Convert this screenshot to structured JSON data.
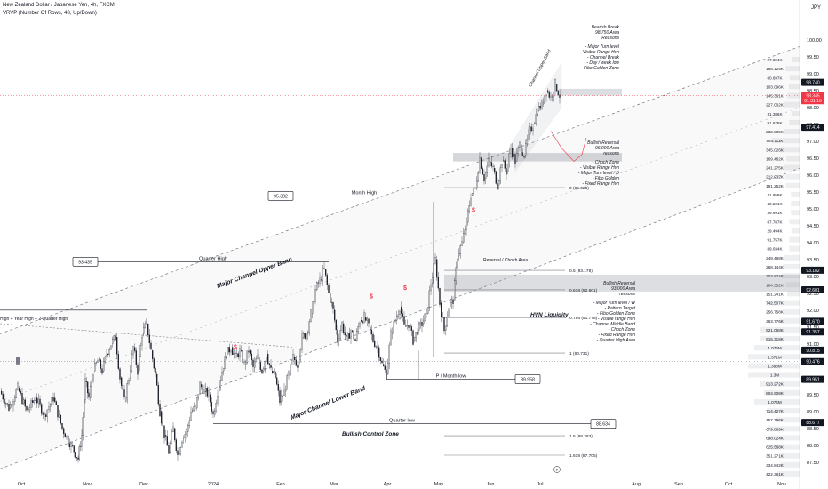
{
  "header": {
    "title": "New Zealand Dollar / Japanese Yen, 4h, FXCM",
    "indicator": "VRVP (Number Of Rows, 48, Up/Down)",
    "currency": "JPY"
  },
  "chart_data": {
    "type": "candlestick",
    "ylim": [
      87.1,
      100.6
    ],
    "x_ticks": [
      "Oct",
      "Nov",
      "Dec",
      "2024",
      "Feb",
      "Mar",
      "Apr",
      "May",
      "Jun",
      "Jul",
      "Aug",
      "Sep",
      "Oct",
      "Nov"
    ],
    "y_ticks": [
      100.0,
      99.5,
      99.0,
      98.5,
      98.0,
      97.5,
      97.0,
      96.5,
      96.0,
      95.5,
      95.0,
      94.5,
      94.0,
      93.5,
      93.0,
      92.5,
      92.0,
      91.5,
      91.0,
      90.5,
      90.0,
      89.5,
      89.0,
      88.5,
      88.0,
      87.5
    ],
    "price_badges": [
      {
        "value": "98.740",
        "price": 98.74,
        "color": "#131722"
      },
      {
        "value": "98.345",
        "price": 98.345,
        "color": "#f23645"
      },
      {
        "value": "01:31:16",
        "price": 98.2,
        "color": "#f23645"
      },
      {
        "value": "97.414",
        "price": 97.414,
        "color": "#131722"
      },
      {
        "value": "93.182",
        "price": 93.182,
        "color": "#131722"
      },
      {
        "value": "92.601",
        "price": 92.601,
        "color": "#131722"
      },
      {
        "value": "91.670",
        "price": 91.67,
        "color": "#131722"
      },
      {
        "value": "91.357",
        "price": 91.357,
        "color": "#131722"
      },
      {
        "value": "90.815",
        "price": 90.815,
        "color": "#131722"
      },
      {
        "value": "90.476",
        "price": 90.476,
        "color": "#131722"
      },
      {
        "value": "89.951",
        "price": 89.951,
        "color": "#131722"
      },
      {
        "value": "88.677",
        "price": 88.677,
        "color": "#131722"
      }
    ],
    "price_path": [
      [
        0,
        89.6
      ],
      [
        10,
        89.1
      ],
      [
        20,
        89.7
      ],
      [
        30,
        89.0
      ],
      [
        40,
        89.4
      ],
      [
        50,
        88.9
      ],
      [
        60,
        89.4
      ],
      [
        70,
        88.5
      ],
      [
        80,
        88.0
      ],
      [
        88,
        87.6
      ],
      [
        92,
        88.3
      ],
      [
        96,
        89.9
      ],
      [
        100,
        89.4
      ],
      [
        105,
        90.2
      ],
      [
        110,
        90.5
      ],
      [
        115,
        90.2
      ],
      [
        120,
        90.7
      ],
      [
        125,
        91.0
      ],
      [
        130,
        91.2
      ],
      [
        135,
        90.0
      ],
      [
        140,
        89.3
      ],
      [
        145,
        90.0
      ],
      [
        150,
        90.9
      ],
      [
        155,
        90.2
      ],
      [
        160,
        91.3
      ],
      [
        165,
        91.6
      ],
      [
        170,
        90.8
      ],
      [
        175,
        90.1
      ],
      [
        180,
        89.0
      ],
      [
        185,
        88.3
      ],
      [
        190,
        87.8
      ],
      [
        195,
        88.5
      ],
      [
        200,
        87.7
      ],
      [
        205,
        88.2
      ],
      [
        210,
        88.4
      ],
      [
        215,
        89.0
      ],
      [
        220,
        89.1
      ],
      [
        225,
        89.8
      ],
      [
        230,
        89.6
      ],
      [
        235,
        89.5
      ],
      [
        240,
        88.9
      ],
      [
        245,
        89.6
      ],
      [
        250,
        90.2
      ],
      [
        255,
        90.7
      ],
      [
        260,
        90.9
      ],
      [
        265,
        90.6
      ],
      [
        270,
        90.8
      ],
      [
        275,
        90.4
      ],
      [
        280,
        90.8
      ],
      [
        285,
        90.3
      ],
      [
        290,
        90.6
      ],
      [
        295,
        90.2
      ],
      [
        300,
        90.7
      ],
      [
        305,
        90.2
      ],
      [
        310,
        90.0
      ],
      [
        315,
        89.3
      ],
      [
        320,
        89.6
      ],
      [
        325,
        90.1
      ],
      [
        330,
        90.6
      ],
      [
        335,
        90.4
      ],
      [
        340,
        91.2
      ],
      [
        345,
        91.3
      ],
      [
        350,
        91.9
      ],
      [
        355,
        92.6
      ],
      [
        360,
        92.9
      ],
      [
        365,
        93.2
      ],
      [
        370,
        92.5
      ],
      [
        375,
        92.0
      ],
      [
        380,
        91.1
      ],
      [
        385,
        91.6
      ],
      [
        390,
        91.1
      ],
      [
        395,
        91.4
      ],
      [
        400,
        91.1
      ],
      [
        405,
        91.7
      ],
      [
        410,
        91.8
      ],
      [
        415,
        91.5
      ],
      [
        420,
        91.1
      ],
      [
        425,
        90.9
      ],
      [
        430,
        90.4
      ],
      [
        435,
        90.1
      ],
      [
        440,
        91.3
      ],
      [
        445,
        91.7
      ],
      [
        450,
        92.1
      ],
      [
        455,
        91.5
      ],
      [
        460,
        91.6
      ],
      [
        465,
        91.1
      ],
      [
        470,
        91.4
      ],
      [
        475,
        91.6
      ],
      [
        480,
        91.9
      ],
      [
        485,
        92.8
      ],
      [
        490,
        93.5
      ],
      [
        495,
        92.2
      ],
      [
        500,
        91.4
      ],
      [
        505,
        92.1
      ],
      [
        510,
        92.3
      ],
      [
        515,
        93.6
      ],
      [
        520,
        94.0
      ],
      [
        525,
        94.6
      ],
      [
        530,
        95.4
      ],
      [
        535,
        95.6
      ],
      [
        540,
        96.5
      ],
      [
        545,
        95.9
      ],
      [
        550,
        96.4
      ],
      [
        555,
        96.2
      ],
      [
        560,
        95.7
      ],
      [
        565,
        96.4
      ],
      [
        570,
        96.1
      ],
      [
        575,
        96.8
      ],
      [
        580,
        96.4
      ],
      [
        585,
        96.9
      ],
      [
        590,
        96.6
      ],
      [
        595,
        97.2
      ],
      [
        600,
        97.5
      ],
      [
        605,
        97.9
      ],
      [
        610,
        98.1
      ],
      [
        615,
        98.5
      ],
      [
        620,
        98.3
      ],
      [
        625,
        98.7
      ],
      [
        630,
        98.35
      ]
    ],
    "channels": [
      {
        "name": "Major Channel Upper Band",
        "x1": 0,
        "y1": 91.3,
        "x2": 900,
        "y2": 99.8
      },
      {
        "name": "Major Channel Lower Band",
        "x1": 0,
        "y1": 87.3,
        "x2": 900,
        "y2": 96.2
      }
    ],
    "levels": [
      {
        "label": "Quarter High",
        "price": 93.435,
        "x1": 110,
        "x2": 370,
        "badge": "93.435"
      },
      {
        "label": "Month High",
        "price": 95.382,
        "x1": 330,
        "x2": 490,
        "badge": "95.382"
      },
      {
        "label": "P / Month low",
        "price": 89.958,
        "x1": 435,
        "x2": 580,
        "badge": "89.958"
      },
      {
        "label": "Quarter low",
        "price": 88.634,
        "x1": 240,
        "x2": 665,
        "badge": "88.634"
      }
    ],
    "fib_levels": [
      {
        "label": "0 (95.626)",
        "price": 95.626
      },
      {
        "label": "0.5 (93.178)",
        "price": 93.178
      },
      {
        "label": "0.618 (92.601)",
        "price": 92.601
      },
      {
        "label": "0.786 (91.778)",
        "price": 91.778
      },
      {
        "label": "1 (90.731)",
        "price": 90.731
      },
      {
        "label": "1.5 (88.283)",
        "price": 88.283
      },
      {
        "label": "1.618 (87.705)",
        "price": 87.705
      }
    ],
    "annotations": [
      {
        "text": "Major Channel Upper Band"
      },
      {
        "text": "Major Channel Lower Band"
      },
      {
        "text": "Channel Upper Band"
      },
      {
        "text": "Bullish Control Zone"
      },
      {
        "text": "HVN Liquidity"
      },
      {
        "text": "Reversal / Choch Area"
      },
      {
        "text": "Bearish Break"
      },
      {
        "text": "98.750 Area"
      },
      {
        "text": "Reasons"
      },
      {
        "text": "- Major Turn level"
      },
      {
        "text": "- Visible Range Hvn"
      },
      {
        "text": "- Channel Break"
      },
      {
        "text": "- Day / week low"
      },
      {
        "text": "- Fibo Golden Zone"
      },
      {
        "text": "Bullish Reversal"
      },
      {
        "text": "96.000 Area"
      },
      {
        "text": "reasons"
      },
      {
        "text": "- Choch Zone"
      },
      {
        "text": "- Visible Range Hvn"
      },
      {
        "text": "- Major Turn level / D"
      },
      {
        "text": "- Fibo Golden"
      },
      {
        "text": "- Fixed Range Hvn"
      },
      {
        "text": "Bullish Reversal"
      },
      {
        "text": "93.000 Area"
      },
      {
        "text": "reasons"
      },
      {
        "text": "- Major Turn level / W"
      },
      {
        "text": "- Pattern Target"
      },
      {
        "text": "- Fibo Golden Zone"
      },
      {
        "text": "- Visible range Hvn"
      },
      {
        "text": "- Channel Middle Band"
      },
      {
        "text": "- Choch Zone"
      },
      {
        "text": "- Fixed Range Hvn"
      },
      {
        "text": "- Quarter High Area"
      },
      {
        "text": "High + Year High + 2 Quarter High"
      }
    ],
    "volume_profile_labels": [
      "27.324K",
      "188.125K",
      "80.697K",
      "103.096K",
      "145.361K",
      "227.002K",
      "31.386K",
      "91.678K",
      "232.885K",
      "584.111K",
      "345.026K",
      "169.482K",
      "241.275K",
      "212.032K",
      "191.252K",
      "41.958K",
      "40.221K",
      "39.991K",
      "87.787K",
      "29.494K",
      "91.757K",
      "89.034K",
      "249.468K",
      "268.144K",
      "303.874K",
      "184.352K",
      "151.241K",
      "742.507K",
      "256.758K",
      "363.776K",
      "921.058K",
      "915.318K",
      "1.076M",
      "1.371M",
      "1.398M",
      "1.3M",
      "913.272K",
      "804.908K",
      "1.074M",
      "714.427K",
      "457.796K",
      "679.889K",
      "698.024K",
      "625.568K",
      "351.271K",
      "334.842K",
      "422.361K"
    ]
  }
}
